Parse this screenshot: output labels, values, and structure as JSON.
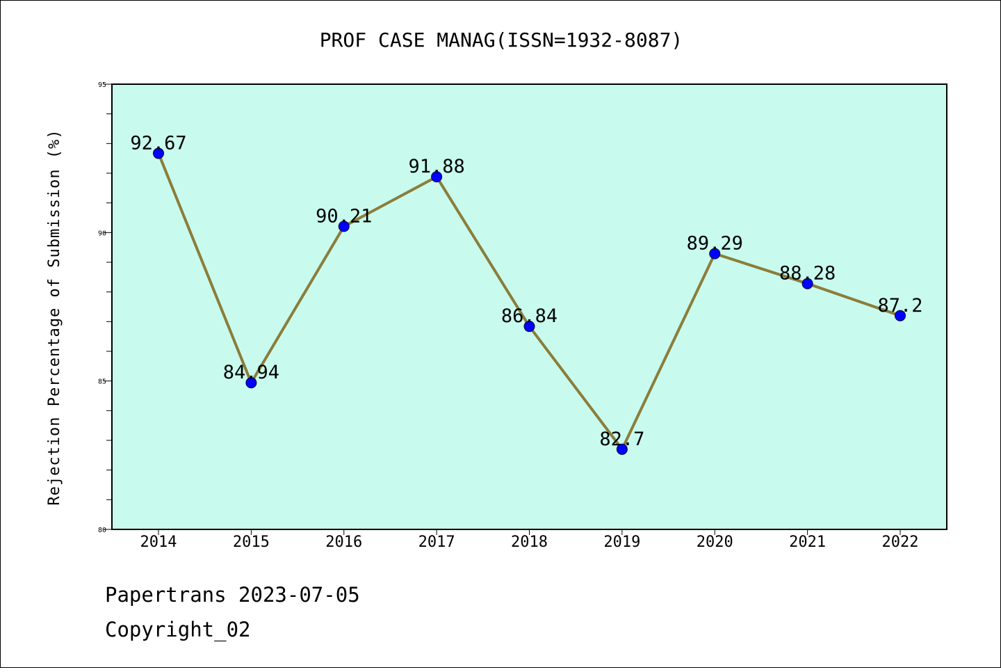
{
  "chart_data": {
    "type": "line",
    "title": "PROF CASE MANAG(ISSN=1932-8087)",
    "xlabel": "",
    "ylabel": "Rejection Percentage of Submission (%)",
    "categories": [
      "2014",
      "2015",
      "2016",
      "2017",
      "2018",
      "2019",
      "2020",
      "2021",
      "2022"
    ],
    "series": [
      {
        "values": [
          92.67,
          84.94,
          90.21,
          91.88,
          86.84,
          82.7,
          89.29,
          88.28,
          87.2
        ],
        "labels": [
          "92.67",
          "84.94",
          "90.21",
          "91.88",
          "86.84",
          "82.7",
          "89.29",
          "88.28",
          "87.2"
        ]
      }
    ],
    "ylim": [
      80,
      95
    ],
    "yticks": [
      "80",
      "85",
      "90",
      "95"
    ],
    "grid": false,
    "legend": "none"
  },
  "footer": {
    "line1": "Papertrans 2023-07-05",
    "line2": "Copyright_02"
  },
  "colors": {
    "plot_background": "#c8fbee",
    "line": "#8b7d3a",
    "marker": "#0000ff"
  }
}
